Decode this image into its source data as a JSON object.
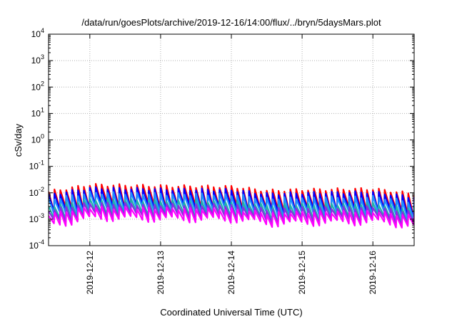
{
  "chart_data": {
    "type": "line",
    "title": "/data/run/goesPlots/archive/2019-12-16/14:00/flux/../bryn/5daysMars.plot",
    "xlabel": "Coordinated Universal Time (UTC)",
    "ylabel": "cSv/day",
    "yscale": "log",
    "ylim": [
      0.0001,
      10000
    ],
    "xlim": [
      "2019-12-11 10:00",
      "2019-12-16 14:00"
    ],
    "grid": true,
    "y_ticks": [
      {
        "base": "10",
        "exp": "-4"
      },
      {
        "base": "10",
        "exp": "-3"
      },
      {
        "base": "10",
        "exp": "-2"
      },
      {
        "base": "10",
        "exp": "-1"
      },
      {
        "base": "10",
        "exp": "0"
      },
      {
        "base": "10",
        "exp": "1"
      },
      {
        "base": "10",
        "exp": "2"
      },
      {
        "base": "10",
        "exp": "3"
      },
      {
        "base": "10",
        "exp": "4"
      }
    ],
    "x_ticks": [
      "2019-12-12",
      "2019-12-13",
      "2019-12-14",
      "2019-12-15",
      "2019-12-16"
    ],
    "sawtooth": {
      "period_hours": 2.0,
      "peaks": [
        {
          "t": "2019-12-11 10:00",
          "red": 0.011
        },
        {
          "t": "2019-12-12 00:00",
          "red": 0.02
        },
        {
          "t": "2019-12-13 00:00",
          "red": 0.018
        },
        {
          "t": "2019-12-14 00:00",
          "red": 0.017
        },
        {
          "t": "2019-12-14 12:00",
          "red": 0.012
        },
        {
          "t": "2019-12-15 00:00",
          "red": 0.013
        },
        {
          "t": "2019-12-16 00:00",
          "red": 0.014
        },
        {
          "t": "2019-12-16 14:00",
          "red": 0.009
        }
      ]
    },
    "series": [
      {
        "color": "#ff0000",
        "peak_factor": 1.0,
        "trough_factor": 0.17
      },
      {
        "color": "#0000ff",
        "peak_factor": 0.75,
        "trough_factor": 0.15
      },
      {
        "color": "#1e90ff",
        "peak_factor": 0.5,
        "trough_factor": 0.12
      },
      {
        "color": "#20b2aa",
        "peak_factor": 0.28,
        "trough_factor": 0.08
      },
      {
        "color": "#8a2be2",
        "peak_factor": 0.2,
        "trough_factor": 0.07
      },
      {
        "color": "#ff00ff",
        "peak_factor": 0.14,
        "trough_factor": 0.055
      }
    ]
  }
}
